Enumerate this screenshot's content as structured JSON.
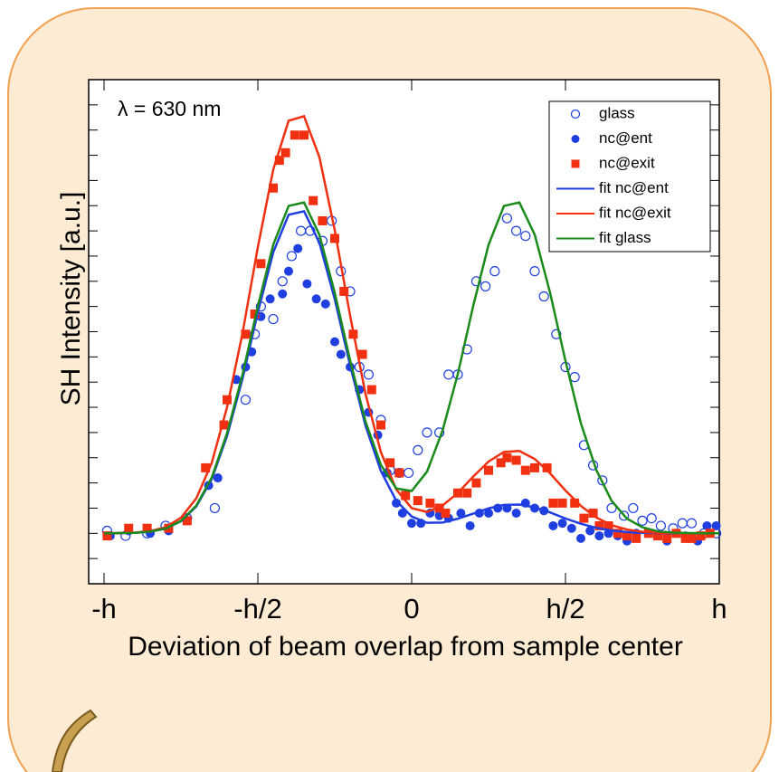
{
  "chart_data": {
    "type": "scatter",
    "annotation": "λ = 630 nm",
    "xlabel": "Deviation of beam overlap from sample center",
    "ylabel": "SH Intensity [a.u.]",
    "xlim": [
      -1.05,
      1.0
    ],
    "ylim": [
      -2,
      18
    ],
    "xticks": [
      {
        "value": -1,
        "label": "-h"
      },
      {
        "value": -0.5,
        "label": "-h/2"
      },
      0,
      {
        "value": 0.5,
        "label": "h/2"
      },
      {
        "value": 1,
        "label": "h"
      }
    ],
    "yticks": [
      -2,
      -1,
      0,
      1,
      2,
      3,
      4,
      5,
      6,
      7,
      8,
      9,
      10,
      11,
      12,
      13,
      14,
      15,
      16,
      17,
      18
    ],
    "legend": "upper right",
    "series": [
      {
        "name": "glass",
        "type": "scatter",
        "marker": "open-circle",
        "color": "#1f3fe0",
        "x": [
          -0.99,
          -0.93,
          -0.86,
          -0.8,
          -0.73,
          -0.64,
          -0.54,
          -0.51,
          -0.49,
          -0.45,
          -0.42,
          -0.39,
          -0.36,
          -0.33,
          -0.29,
          -0.26,
          -0.23,
          -0.2,
          -0.17,
          -0.14,
          -0.1,
          -0.07,
          -0.04,
          -0.01,
          0.02,
          0.05,
          0.09,
          0.12,
          0.15,
          0.18,
          0.21,
          0.24,
          0.27,
          0.31,
          0.34,
          0.37,
          0.4,
          0.43,
          0.47,
          0.5,
          0.53,
          0.56,
          0.59,
          0.62,
          0.65,
          0.69,
          0.72,
          0.75,
          0.78,
          0.81,
          0.85,
          0.88,
          0.91,
          0.95,
          0.99
        ],
        "values": [
          0.1,
          -0.1,
          0.0,
          0.3,
          0.6,
          1.0,
          5.3,
          7.9,
          9.0,
          8.5,
          10.0,
          11.0,
          12.0,
          12.0,
          11.6,
          12.4,
          10.4,
          9.6,
          6.6,
          6.3,
          4.5,
          2.5,
          2.4,
          2.4,
          3.3,
          4.0,
          4.0,
          6.3,
          6.3,
          7.3,
          10.0,
          9.8,
          10.4,
          12.5,
          12.0,
          11.8,
          10.4,
          9.4,
          7.9,
          6.6,
          6.2,
          3.5,
          2.7,
          2.1,
          1.0,
          0.7,
          1.0,
          0.5,
          0.6,
          0.3,
          0.2,
          0.4,
          0.4,
          0.0,
          0.0
        ]
      },
      {
        "name": "nc@ent",
        "type": "scatter",
        "marker": "circle",
        "color": "#1f3fe0",
        "x": [
          -0.98,
          -0.92,
          -0.85,
          -0.79,
          -0.73,
          -0.66,
          -0.63,
          -0.57,
          -0.54,
          -0.52,
          -0.49,
          -0.46,
          -0.42,
          -0.4,
          -0.37,
          -0.34,
          -0.31,
          -0.28,
          -0.25,
          -0.23,
          -0.2,
          -0.17,
          -0.14,
          -0.11,
          -0.08,
          -0.05,
          -0.03,
          0.0,
          0.03,
          0.06,
          0.09,
          0.12,
          0.16,
          0.19,
          0.22,
          0.25,
          0.28,
          0.31,
          0.34,
          0.37,
          0.4,
          0.43,
          0.46,
          0.49,
          0.52,
          0.55,
          0.58,
          0.61,
          0.64,
          0.67,
          0.7,
          0.73,
          0.77,
          0.8,
          0.83,
          0.86,
          0.89,
          0.93,
          0.96,
          0.99
        ],
        "values": [
          -0.1,
          0.1,
          0.0,
          0.1,
          0.5,
          1.9,
          2.2,
          6.1,
          6.6,
          7.2,
          8.6,
          9.3,
          9.5,
          10.4,
          11.3,
          9.9,
          9.3,
          9.1,
          7.6,
          7.1,
          6.6,
          5.7,
          4.8,
          3.9,
          2.4,
          1.2,
          0.8,
          0.4,
          0.4,
          0.8,
          0.7,
          0.6,
          0.8,
          0.3,
          0.8,
          0.8,
          1.0,
          1.0,
          0.8,
          1.2,
          1.0,
          0.9,
          0.3,
          0.4,
          0.2,
          -0.2,
          0.1,
          -0.1,
          0.0,
          -0.1,
          -0.3,
          0.0,
          0.0,
          -0.1,
          -0.3,
          0.0,
          -0.1,
          -0.3,
          0.3,
          0.3
        ]
      },
      {
        "name": "nc@exit",
        "type": "scatter",
        "marker": "square",
        "color": "#f03010",
        "x": [
          -0.99,
          -0.92,
          -0.86,
          -0.79,
          -0.73,
          -0.67,
          -0.61,
          -0.6,
          -0.54,
          -0.51,
          -0.49,
          -0.45,
          -0.43,
          -0.41,
          -0.38,
          -0.35,
          -0.32,
          -0.29,
          -0.25,
          -0.22,
          -0.19,
          -0.16,
          -0.13,
          -0.1,
          -0.07,
          -0.04,
          -0.02,
          0.02,
          0.06,
          0.09,
          0.11,
          0.15,
          0.18,
          0.21,
          0.25,
          0.29,
          0.31,
          0.34,
          0.37,
          0.4,
          0.44,
          0.46,
          0.49,
          0.53,
          0.56,
          0.59,
          0.61,
          0.64,
          0.67,
          0.7,
          0.73,
          0.77,
          0.8,
          0.83,
          0.86,
          0.89,
          0.91,
          0.94,
          0.97
        ],
        "values": [
          -0.1,
          0.2,
          0.2,
          0.2,
          0.5,
          2.6,
          4.3,
          5.3,
          7.9,
          8.7,
          10.7,
          13.7,
          14.8,
          15.1,
          15.8,
          15.8,
          13.2,
          12.4,
          11.7,
          9.6,
          7.9,
          7.1,
          5.7,
          4.3,
          2.8,
          2.4,
          1.5,
          1.3,
          1.2,
          1.0,
          0.8,
          1.6,
          1.6,
          2.0,
          2.5,
          2.8,
          3.0,
          2.9,
          2.5,
          2.6,
          2.6,
          1.2,
          1.2,
          1.2,
          0.6,
          0.8,
          0.3,
          0.3,
          0.0,
          -0.1,
          -0.2,
          0.0,
          -0.1,
          -0.2,
          0.0,
          -0.2,
          -0.2,
          -0.1,
          0.0
        ]
      },
      {
        "name": "fit nc@ent",
        "type": "line",
        "color": "#1f3fe0",
        "x": [
          -1.0,
          -0.95,
          -0.9,
          -0.85,
          -0.8,
          -0.75,
          -0.7,
          -0.65,
          -0.6,
          -0.55,
          -0.5,
          -0.45,
          -0.4,
          -0.35,
          -0.3,
          -0.25,
          -0.2,
          -0.15,
          -0.1,
          -0.05,
          0,
          0.05,
          0.1,
          0.15,
          0.2,
          0.25,
          0.3,
          0.35,
          0.4,
          0.45,
          0.5,
          0.55,
          0.6,
          0.65,
          0.7,
          0.75,
          0.8,
          0.85,
          0.9,
          0.95,
          1.0
        ],
        "values": [
          0,
          0.01,
          0.02,
          0.07,
          0.19,
          0.48,
          1.07,
          2.15,
          3.87,
          6.13,
          8.77,
          11.15,
          12.64,
          12.78,
          11.53,
          9.29,
          6.66,
          4.27,
          2.47,
          1.29,
          0.67,
          0.42,
          0.43,
          0.58,
          0.78,
          0.99,
          1.13,
          1.14,
          1.03,
          0.83,
          0.59,
          0.38,
          0.22,
          0.11,
          0.05,
          0.02,
          0.01,
          0,
          0,
          0,
          0
        ]
      },
      {
        "name": "fit nc@exit",
        "type": "line",
        "color": "#f03010",
        "x": [
          -1.0,
          -0.95,
          -0.9,
          -0.85,
          -0.8,
          -0.75,
          -0.7,
          -0.65,
          -0.6,
          -0.55,
          -0.5,
          -0.45,
          -0.4,
          -0.35,
          -0.3,
          -0.25,
          -0.2,
          -0.15,
          -0.1,
          -0.05,
          0,
          0.05,
          0.1,
          0.15,
          0.2,
          0.25,
          0.3,
          0.35,
          0.4,
          0.45,
          0.5,
          0.55,
          0.6,
          0.65,
          0.7,
          0.75,
          0.8,
          0.85,
          0.9,
          0.95,
          1.0
        ],
        "values": [
          0,
          0.01,
          0.03,
          0.09,
          0.24,
          0.62,
          1.39,
          2.79,
          5.01,
          7.93,
          11.36,
          14.43,
          16.37,
          16.55,
          14.93,
          12.02,
          8.63,
          5.53,
          3.22,
          1.74,
          1.0,
          0.85,
          1.1,
          1.6,
          2.25,
          2.85,
          3.23,
          3.27,
          2.95,
          2.38,
          1.7,
          1.09,
          0.63,
          0.32,
          0.15,
          0.06,
          0.02,
          0.01,
          0,
          0,
          0
        ]
      },
      {
        "name": "fit glass",
        "type": "line",
        "color": "#1a8a1a",
        "x": [
          -1.0,
          -0.95,
          -0.9,
          -0.85,
          -0.8,
          -0.75,
          -0.7,
          -0.65,
          -0.6,
          -0.55,
          -0.5,
          -0.45,
          -0.4,
          -0.35,
          -0.3,
          -0.25,
          -0.2,
          -0.15,
          -0.1,
          -0.05,
          0,
          0.05,
          0.1,
          0.15,
          0.2,
          0.25,
          0.3,
          0.35,
          0.4,
          0.45,
          0.5,
          0.55,
          0.6,
          0.65,
          0.7,
          0.75,
          0.8,
          0.85,
          0.9,
          0.95,
          1.0
        ],
        "values": [
          0,
          0.01,
          0.02,
          0.07,
          0.19,
          0.49,
          1.1,
          2.21,
          3.98,
          6.29,
          9.01,
          11.45,
          12.99,
          13.13,
          11.85,
          9.54,
          6.86,
          4.44,
          2.71,
          1.78,
          1.68,
          2.45,
          4.06,
          6.32,
          9.02,
          11.45,
          12.99,
          13.13,
          11.85,
          9.54,
          6.84,
          4.37,
          2.52,
          1.29,
          0.58,
          0.24,
          0.08,
          0.03,
          0.01,
          0,
          0
        ]
      }
    ]
  }
}
